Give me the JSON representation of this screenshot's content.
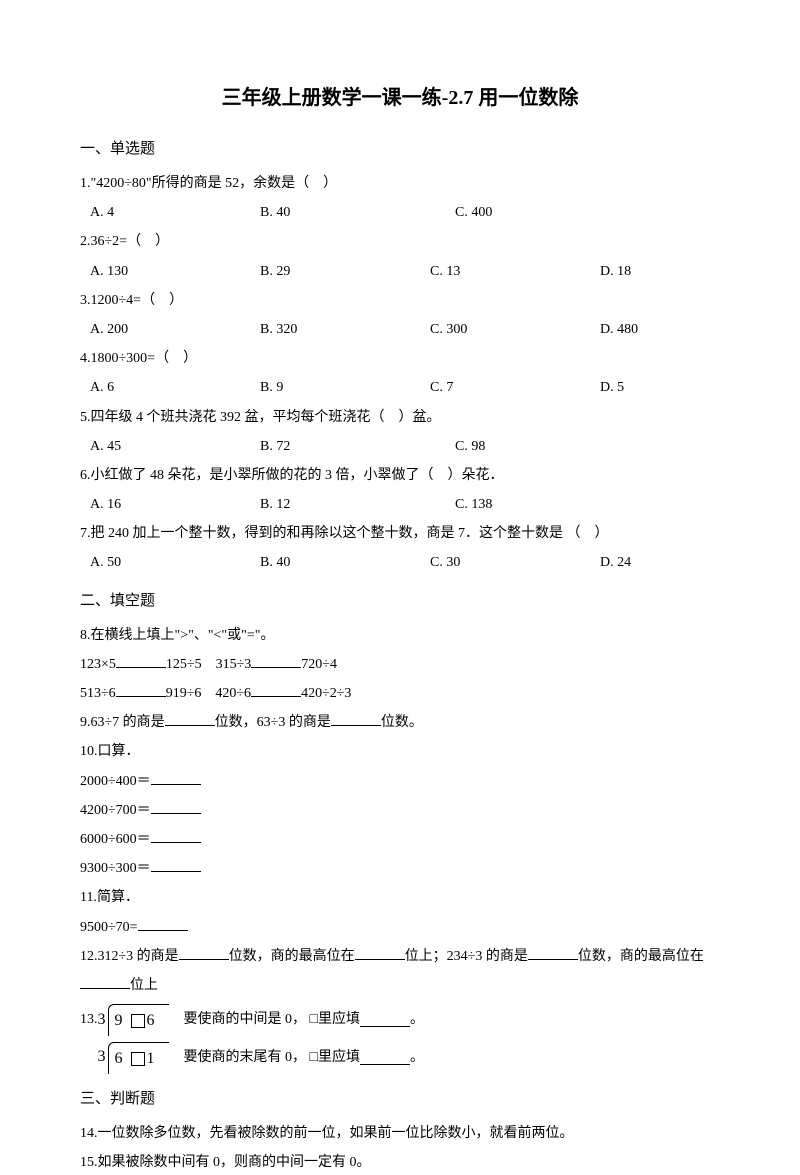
{
  "title": "三年级上册数学一课一练-2.7 用一位数除",
  "section1": "一、单选题",
  "q1": {
    "stem": "1.\"4200÷80\"所得的商是 52，余数是（　）",
    "a": "A. 4",
    "b": "B. 40",
    "c": "C. 400"
  },
  "q2": {
    "stem": "2.36÷2=（　）",
    "a": "A. 130",
    "b": "B. 29",
    "c": "C. 13",
    "d": "D. 18"
  },
  "q3": {
    "stem": "3.1200÷4=（　）",
    "a": "A. 200",
    "b": "B. 320",
    "c": "C. 300",
    "d": "D. 480"
  },
  "q4": {
    "stem": "4.1800÷300=（　）",
    "a": "A. 6",
    "b": "B. 9",
    "c": "C. 7",
    "d": "D. 5"
  },
  "q5": {
    "stem": "5.四年级 4 个班共浇花 392 盆，平均每个班浇花（　）盆。",
    "a": "A. 45",
    "b": "B. 72",
    "c": "C. 98"
  },
  "q6": {
    "stem": "6.小红做了 48 朵花，是小翠所做的花的 3 倍，小翠做了（　）朵花．",
    "a": "A. 16",
    "b": "B. 12",
    "c": "C. 138"
  },
  "q7": {
    "stem": "7.把 240 加上一个整十数，得到的和再除以这个整十数，商是 7．这个整十数是 （　）",
    "a": "A. 50",
    "b": "B. 40",
    "c": "C. 30",
    "d": "D. 24"
  },
  "section2": "二、填空题",
  "q8": {
    "stem": "8.在横线上填上\">\"、\"<\"或\"=\"。",
    "l1a": "123×5",
    "l1b": "125÷5",
    "l1c": "315÷3",
    "l1d": "720÷4",
    "l2a": "513÷6",
    "l2b": "919÷6",
    "l2c": "420÷6",
    "l2d": "420÷2÷3"
  },
  "q9": {
    "pre": "9.63÷7 的商是",
    "mid": "位数，63÷3 的商是",
    "post": "位数。"
  },
  "q10": {
    "stem": "10.口算．",
    "l1": "2000÷400＝",
    "l2": "4200÷700＝",
    "l3": "6000÷600＝",
    "l4": "9300÷300＝"
  },
  "q11": {
    "stem": "11.简算．",
    "l1": "9500÷70="
  },
  "q12": {
    "pre": "12.312÷3 的商是",
    "p2": "位数，商的最高位在",
    "p3": "位上；234÷3 的商是",
    "p4": "位数，商的最高位在",
    "p5": "位上"
  },
  "q13": {
    "label": "13.",
    "div1_left": "3",
    "div1_right_a": "9",
    "div1_right_b": "6",
    "text1a": "要使商的中间是 0， □里应填",
    "text1b": "。",
    "div2_left": "3",
    "div2_right_a": "6",
    "div2_right_b": "1",
    "text2a": "要使商的末尾有 0， □里应填",
    "text2b": "。"
  },
  "section3": "三、判断题",
  "q14": "14.一位数除多位数，先看被除数的前一位，如果前一位比除数小，就看前两位。",
  "q15": "15.如果被除数中间有 0，则商的中间一定有 0。"
}
